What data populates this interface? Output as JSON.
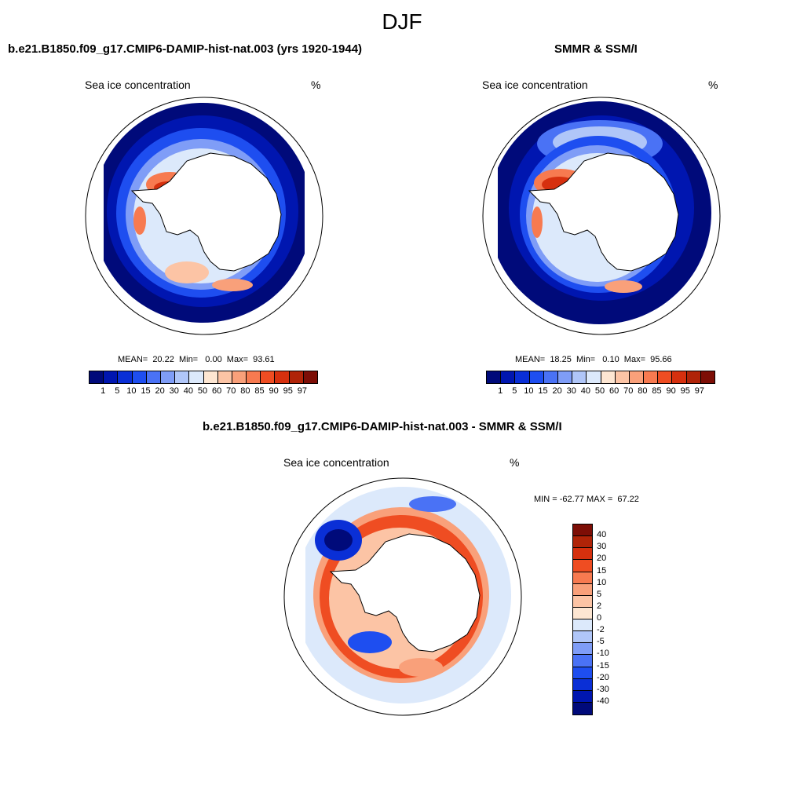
{
  "title": "DJF",
  "panels": {
    "model": {
      "title": "b.e21.B1850.f09_g17.CMIP6-DAMIP-hist-nat.003 (yrs 1920-1944)",
      "subtitle": "Sea ice concentration",
      "unit": "%",
      "stats": "MEAN=  20.22  Min=   0.00  Max=  93.61",
      "stats_values": {
        "mean": 20.22,
        "min": 0.0,
        "max": 93.61
      }
    },
    "obs": {
      "title": "SMMR & SSM/I",
      "subtitle": "Sea ice concentration",
      "unit": "%",
      "stats": "MEAN=  18.25  Min=   0.10  Max=  95.66",
      "stats_values": {
        "mean": 18.25,
        "min": 0.1,
        "max": 95.66
      }
    },
    "diff": {
      "title": "b.e21.B1850.f09_g17.CMIP6-DAMIP-hist-nat.003 - SMMR & SSM/I",
      "subtitle": "Sea ice concentration",
      "unit": "%",
      "stats": "MIN = -62.77 MAX =  67.22",
      "stats_values": {
        "min": -62.77,
        "max": 67.22
      }
    }
  },
  "colorbar_abs": {
    "labels": [
      "1",
      "5",
      "10",
      "15",
      "20",
      "30",
      "40",
      "50",
      "60",
      "70",
      "80",
      "85",
      "90",
      "95",
      "97"
    ],
    "colors": [
      "#000a7a",
      "#0016b0",
      "#0a2fd6",
      "#1e4ef0",
      "#4a72f5",
      "#7f9df7",
      "#b0c6f8",
      "#dce9fb",
      "#fde6d2",
      "#fcc4a5",
      "#f9a07a",
      "#f77a50",
      "#ef4d22",
      "#d6300e",
      "#b02408",
      "#7d0e06"
    ]
  },
  "colorbar_diff": {
    "labels": [
      "40",
      "30",
      "20",
      "15",
      "10",
      "5",
      "2",
      "0",
      "-2",
      "-5",
      "-10",
      "-15",
      "-20",
      "-30",
      "-40"
    ],
    "colors": [
      "#7d0e06",
      "#b02408",
      "#d6300e",
      "#ef4d22",
      "#f77a50",
      "#f9a07a",
      "#fcc4a5",
      "#fde6d2",
      "#dce9fb",
      "#b0c6f8",
      "#7f9df7",
      "#4a72f5",
      "#1e4ef0",
      "#0a2fd6",
      "#0016b0",
      "#000a7a"
    ]
  }
}
